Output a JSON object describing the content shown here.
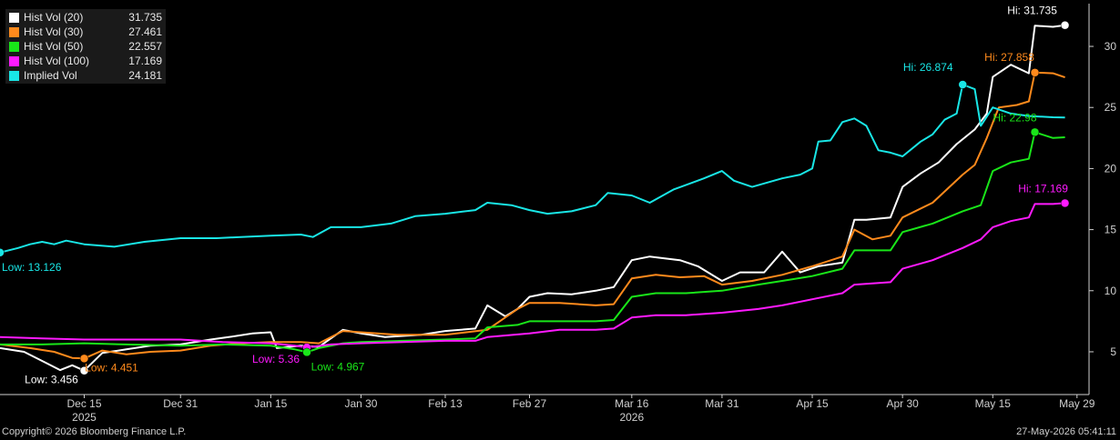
{
  "chart_data": {
    "type": "line",
    "y_axis": {
      "side": "right",
      "ticks": [
        5,
        10,
        15,
        20,
        25,
        30
      ],
      "range": [
        1.5,
        33.5
      ],
      "grid": false
    },
    "x_axis": {
      "range": [
        "2025-12-01",
        "2026-05-31"
      ],
      "ticks": [
        {
          "label": "Dec 15",
          "date": "2025-12-15"
        },
        {
          "label": "Dec 31",
          "date": "2025-12-31"
        },
        {
          "label": "Jan 15",
          "date": "2026-01-15"
        },
        {
          "label": "Jan 30",
          "date": "2026-01-30"
        },
        {
          "label": "Feb 13",
          "date": "2026-02-13"
        },
        {
          "label": "Feb 27",
          "date": "2026-02-27"
        },
        {
          "label": "Mar 16",
          "date": "2026-03-16"
        },
        {
          "label": "Mar 31",
          "date": "2026-03-31"
        },
        {
          "label": "Apr 15",
          "date": "2026-04-15"
        },
        {
          "label": "Apr 30",
          "date": "2026-04-30"
        },
        {
          "label": "May 15",
          "date": "2026-05-15"
        },
        {
          "label": "May 29",
          "date": "2026-05-29"
        }
      ],
      "year_labels": [
        {
          "label": "2025",
          "date": "2025-12-15"
        },
        {
          "label": "2026",
          "date": "2026-03-16"
        }
      ]
    },
    "legend_position": "top-left",
    "series": [
      {
        "name": "Hist Vol (20)",
        "last": "31.735",
        "color": "#ffffff",
        "points": [
          [
            "2025-12-01",
            5.3
          ],
          [
            "2025-12-05",
            5.0
          ],
          [
            "2025-12-09",
            4.0
          ],
          [
            "2025-12-11",
            3.5
          ],
          [
            "2025-12-13",
            3.9
          ],
          [
            "2025-12-15",
            3.456
          ],
          [
            "2025-12-18",
            4.9
          ],
          [
            "2025-12-22",
            5.2
          ],
          [
            "2025-12-26",
            5.5
          ],
          [
            "2025-12-31",
            5.6
          ],
          [
            "2026-01-05",
            6.0
          ],
          [
            "2026-01-08",
            6.2
          ],
          [
            "2026-01-12",
            6.5
          ],
          [
            "2026-01-15",
            6.6
          ],
          [
            "2026-01-16",
            5.3
          ],
          [
            "2026-01-20",
            5.5
          ],
          [
            "2026-01-23",
            5.4
          ],
          [
            "2026-01-27",
            6.8
          ],
          [
            "2026-01-30",
            6.5
          ],
          [
            "2026-02-03",
            6.2
          ],
          [
            "2026-02-09",
            6.4
          ],
          [
            "2026-02-13",
            6.7
          ],
          [
            "2026-02-18",
            6.9
          ],
          [
            "2026-02-20",
            8.8
          ],
          [
            "2026-02-23",
            7.9
          ],
          [
            "2026-02-25",
            8.5
          ],
          [
            "2026-02-27",
            9.5
          ],
          [
            "2026-03-02",
            9.8
          ],
          [
            "2026-03-06",
            9.7
          ],
          [
            "2026-03-10",
            10.0
          ],
          [
            "2026-03-13",
            10.3
          ],
          [
            "2026-03-16",
            12.5
          ],
          [
            "2026-03-19",
            12.8
          ],
          [
            "2026-03-24",
            12.5
          ],
          [
            "2026-03-27",
            12.0
          ],
          [
            "2026-03-31",
            10.8
          ],
          [
            "2026-04-03",
            11.5
          ],
          [
            "2026-04-07",
            11.5
          ],
          [
            "2026-04-10",
            13.2
          ],
          [
            "2026-04-13",
            11.5
          ],
          [
            "2026-04-16",
            12.0
          ],
          [
            "2026-04-20",
            12.3
          ],
          [
            "2026-04-22",
            15.8
          ],
          [
            "2026-04-24",
            15.8
          ],
          [
            "2026-04-28",
            16.0
          ],
          [
            "2026-04-30",
            18.5
          ],
          [
            "2026-05-03",
            19.6
          ],
          [
            "2026-05-06",
            20.5
          ],
          [
            "2026-05-09",
            22.0
          ],
          [
            "2026-05-12",
            23.2
          ],
          [
            "2026-05-14",
            24.5
          ],
          [
            "2026-05-15",
            27.5
          ],
          [
            "2026-05-18",
            28.5
          ],
          [
            "2026-05-21",
            27.8
          ],
          [
            "2026-05-22",
            31.7
          ],
          [
            "2026-05-25",
            31.6
          ],
          [
            "2026-05-27",
            31.735
          ]
        ]
      },
      {
        "name": "Hist Vol (30)",
        "last": "27.461",
        "color": "#ff8a1c",
        "points": [
          [
            "2025-12-01",
            5.6
          ],
          [
            "2025-12-06",
            5.3
          ],
          [
            "2025-12-10",
            5.0
          ],
          [
            "2025-12-13",
            4.5
          ],
          [
            "2025-12-15",
            4.451
          ],
          [
            "2025-12-18",
            5.1
          ],
          [
            "2025-12-22",
            4.8
          ],
          [
            "2025-12-26",
            5.0
          ],
          [
            "2025-12-31",
            5.1
          ],
          [
            "2026-01-05",
            5.5
          ],
          [
            "2026-01-10",
            5.7
          ],
          [
            "2026-01-15",
            5.8
          ],
          [
            "2026-01-20",
            5.8
          ],
          [
            "2026-01-23",
            5.7
          ],
          [
            "2026-01-27",
            6.7
          ],
          [
            "2026-01-30",
            6.6
          ],
          [
            "2026-02-05",
            6.4
          ],
          [
            "2026-02-13",
            6.4
          ],
          [
            "2026-02-20",
            6.8
          ],
          [
            "2026-02-25",
            8.5
          ],
          [
            "2026-02-27",
            9.0
          ],
          [
            "2026-03-04",
            9.0
          ],
          [
            "2026-03-10",
            8.8
          ],
          [
            "2026-03-13",
            8.9
          ],
          [
            "2026-03-16",
            11.0
          ],
          [
            "2026-03-20",
            11.3
          ],
          [
            "2026-03-24",
            11.1
          ],
          [
            "2026-03-28",
            11.2
          ],
          [
            "2026-03-31",
            10.5
          ],
          [
            "2026-04-05",
            10.8
          ],
          [
            "2026-04-10",
            11.3
          ],
          [
            "2026-04-15",
            12.0
          ],
          [
            "2026-04-20",
            12.8
          ],
          [
            "2026-04-22",
            15.0
          ],
          [
            "2026-04-25",
            14.2
          ],
          [
            "2026-04-28",
            14.5
          ],
          [
            "2026-04-30",
            16.0
          ],
          [
            "2026-05-05",
            17.2
          ],
          [
            "2026-05-10",
            19.5
          ],
          [
            "2026-05-12",
            20.3
          ],
          [
            "2026-05-14",
            22.5
          ],
          [
            "2026-05-16",
            25.0
          ],
          [
            "2026-05-19",
            25.2
          ],
          [
            "2026-05-21",
            25.5
          ],
          [
            "2026-05-22",
            27.858
          ],
          [
            "2026-05-25",
            27.8
          ],
          [
            "2026-05-27",
            27.461
          ]
        ]
      },
      {
        "name": "Hist Vol (50)",
        "last": "22.557",
        "color": "#19e619",
        "points": [
          [
            "2025-12-01",
            5.6
          ],
          [
            "2025-12-08",
            5.6
          ],
          [
            "2025-12-15",
            5.7
          ],
          [
            "2025-12-22",
            5.6
          ],
          [
            "2025-12-31",
            5.5
          ],
          [
            "2026-01-07",
            5.6
          ],
          [
            "2026-01-15",
            5.5
          ],
          [
            "2026-01-19",
            5.2
          ],
          [
            "2026-01-21",
            4.967
          ],
          [
            "2026-01-23",
            5.3
          ],
          [
            "2026-01-27",
            5.7
          ],
          [
            "2026-01-30",
            5.8
          ],
          [
            "2026-02-06",
            5.9
          ],
          [
            "2026-02-13",
            6.0
          ],
          [
            "2026-02-18",
            6.1
          ],
          [
            "2026-02-20",
            7.0
          ],
          [
            "2026-02-25",
            7.2
          ],
          [
            "2026-02-27",
            7.5
          ],
          [
            "2026-03-04",
            7.5
          ],
          [
            "2026-03-10",
            7.5
          ],
          [
            "2026-03-13",
            7.6
          ],
          [
            "2026-03-16",
            9.5
          ],
          [
            "2026-03-20",
            9.8
          ],
          [
            "2026-03-25",
            9.8
          ],
          [
            "2026-03-31",
            10.0
          ],
          [
            "2026-04-06",
            10.5
          ],
          [
            "2026-04-10",
            10.8
          ],
          [
            "2026-04-15",
            11.2
          ],
          [
            "2026-04-20",
            11.8
          ],
          [
            "2026-04-22",
            13.3
          ],
          [
            "2026-04-28",
            13.3
          ],
          [
            "2026-04-30",
            14.8
          ],
          [
            "2026-05-05",
            15.5
          ],
          [
            "2026-05-10",
            16.5
          ],
          [
            "2026-05-13",
            17.0
          ],
          [
            "2026-05-15",
            19.8
          ],
          [
            "2026-05-18",
            20.5
          ],
          [
            "2026-05-21",
            20.8
          ],
          [
            "2026-05-22",
            22.98
          ],
          [
            "2026-05-25",
            22.5
          ],
          [
            "2026-05-27",
            22.557
          ]
        ]
      },
      {
        "name": "Hist Vol (100)",
        "last": "17.169",
        "color": "#ff1aff",
        "points": [
          [
            "2025-12-01",
            6.2
          ],
          [
            "2025-12-08",
            6.1
          ],
          [
            "2025-12-15",
            6.0
          ],
          [
            "2025-12-22",
            6.0
          ],
          [
            "2025-12-31",
            6.0
          ],
          [
            "2026-01-07",
            5.8
          ],
          [
            "2026-01-15",
            5.7
          ],
          [
            "2026-01-19",
            5.5
          ],
          [
            "2026-01-21",
            5.36
          ],
          [
            "2026-01-25",
            5.6
          ],
          [
            "2026-01-30",
            5.7
          ],
          [
            "2026-02-06",
            5.8
          ],
          [
            "2026-02-13",
            5.9
          ],
          [
            "2026-02-18",
            5.9
          ],
          [
            "2026-02-20",
            6.2
          ],
          [
            "2026-02-27",
            6.5
          ],
          [
            "2026-03-04",
            6.8
          ],
          [
            "2026-03-10",
            6.8
          ],
          [
            "2026-03-13",
            6.9
          ],
          [
            "2026-03-16",
            7.8
          ],
          [
            "2026-03-20",
            8.0
          ],
          [
            "2026-03-25",
            8.0
          ],
          [
            "2026-03-31",
            8.2
          ],
          [
            "2026-04-06",
            8.5
          ],
          [
            "2026-04-10",
            8.8
          ],
          [
            "2026-04-15",
            9.3
          ],
          [
            "2026-04-20",
            9.8
          ],
          [
            "2026-04-22",
            10.5
          ],
          [
            "2026-04-28",
            10.7
          ],
          [
            "2026-04-30",
            11.8
          ],
          [
            "2026-05-05",
            12.5
          ],
          [
            "2026-05-10",
            13.5
          ],
          [
            "2026-05-13",
            14.2
          ],
          [
            "2026-05-15",
            15.2
          ],
          [
            "2026-05-18",
            15.7
          ],
          [
            "2026-05-21",
            16.0
          ],
          [
            "2026-05-22",
            17.1
          ],
          [
            "2026-05-25",
            17.1
          ],
          [
            "2026-05-27",
            17.169
          ]
        ]
      },
      {
        "name": "Implied Vol",
        "last": "24.181",
        "color": "#19e6e6",
        "points": [
          [
            "2025-12-01",
            13.126
          ],
          [
            "2025-12-04",
            13.5
          ],
          [
            "2025-12-06",
            13.8
          ],
          [
            "2025-12-08",
            14.0
          ],
          [
            "2025-12-10",
            13.8
          ],
          [
            "2025-12-12",
            14.1
          ],
          [
            "2025-12-15",
            13.8
          ],
          [
            "2025-12-20",
            13.6
          ],
          [
            "2025-12-25",
            14.0
          ],
          [
            "2025-12-31",
            14.3
          ],
          [
            "2026-01-06",
            14.3
          ],
          [
            "2026-01-10",
            14.4
          ],
          [
            "2026-01-15",
            14.5
          ],
          [
            "2026-01-20",
            14.6
          ],
          [
            "2026-01-22",
            14.4
          ],
          [
            "2026-01-25",
            15.2
          ],
          [
            "2026-01-30",
            15.2
          ],
          [
            "2026-02-04",
            15.5
          ],
          [
            "2026-02-08",
            16.1
          ],
          [
            "2026-02-13",
            16.3
          ],
          [
            "2026-02-18",
            16.6
          ],
          [
            "2026-02-20",
            17.2
          ],
          [
            "2026-02-24",
            17.0
          ],
          [
            "2026-02-27",
            16.6
          ],
          [
            "2026-03-02",
            16.3
          ],
          [
            "2026-03-06",
            16.5
          ],
          [
            "2026-03-10",
            17.0
          ],
          [
            "2026-03-12",
            18.0
          ],
          [
            "2026-03-16",
            17.8
          ],
          [
            "2026-03-19",
            17.2
          ],
          [
            "2026-03-23",
            18.3
          ],
          [
            "2026-03-28",
            19.2
          ],
          [
            "2026-03-31",
            19.8
          ],
          [
            "2026-04-02",
            19.0
          ],
          [
            "2026-04-05",
            18.5
          ],
          [
            "2026-04-10",
            19.2
          ],
          [
            "2026-04-13",
            19.5
          ],
          [
            "2026-04-15",
            20.0
          ],
          [
            "2026-04-16",
            22.2
          ],
          [
            "2026-04-18",
            22.3
          ],
          [
            "2026-04-20",
            23.8
          ],
          [
            "2026-04-22",
            24.1
          ],
          [
            "2026-04-24",
            23.5
          ],
          [
            "2026-04-26",
            21.5
          ],
          [
            "2026-04-28",
            21.3
          ],
          [
            "2026-04-30",
            21.0
          ],
          [
            "2026-05-03",
            22.2
          ],
          [
            "2026-05-05",
            22.8
          ],
          [
            "2026-05-07",
            24.0
          ],
          [
            "2026-05-09",
            24.5
          ],
          [
            "2026-05-10",
            26.874
          ],
          [
            "2026-05-12",
            26.5
          ],
          [
            "2026-05-13",
            23.5
          ],
          [
            "2026-05-15",
            25.0
          ],
          [
            "2026-05-18",
            24.5
          ],
          [
            "2026-05-21",
            24.3
          ],
          [
            "2026-05-25",
            24.2
          ],
          [
            "2026-05-27",
            24.181
          ]
        ]
      }
    ],
    "annotations": [
      {
        "series": 0,
        "text": "Low: 3.456",
        "date": "2025-12-15",
        "value": 3.456
      },
      {
        "series": 1,
        "text": "Low: 4.451",
        "date": "2025-12-15",
        "value": 4.451
      },
      {
        "series": 3,
        "text": "Low: 5.36",
        "date": "2026-01-21",
        "value": 5.36
      },
      {
        "series": 2,
        "text": "Low: 4.967",
        "date": "2026-01-21",
        "value": 4.967
      },
      {
        "series": 4,
        "text": "Low: 13.126",
        "date": "2025-12-01",
        "value": 13.126
      },
      {
        "series": 4,
        "text": "Hi: 26.874",
        "date": "2026-05-10",
        "value": 26.874
      },
      {
        "series": 0,
        "text": "Hi: 31.735",
        "date": "2026-05-27",
        "value": 31.735
      },
      {
        "series": 1,
        "text": "Hi: 27.858",
        "date": "2026-05-22",
        "value": 27.858
      },
      {
        "series": 2,
        "text": "Hi: 22.98",
        "date": "2026-05-22",
        "value": 22.98
      },
      {
        "series": 3,
        "text": "Hi: 17.169",
        "date": "2026-05-27",
        "value": 17.169
      }
    ]
  },
  "footer": {
    "copyright": "Copyright© 2026 Bloomberg Finance L.P.",
    "timestamp": "27-May-2026 05:41:11"
  }
}
